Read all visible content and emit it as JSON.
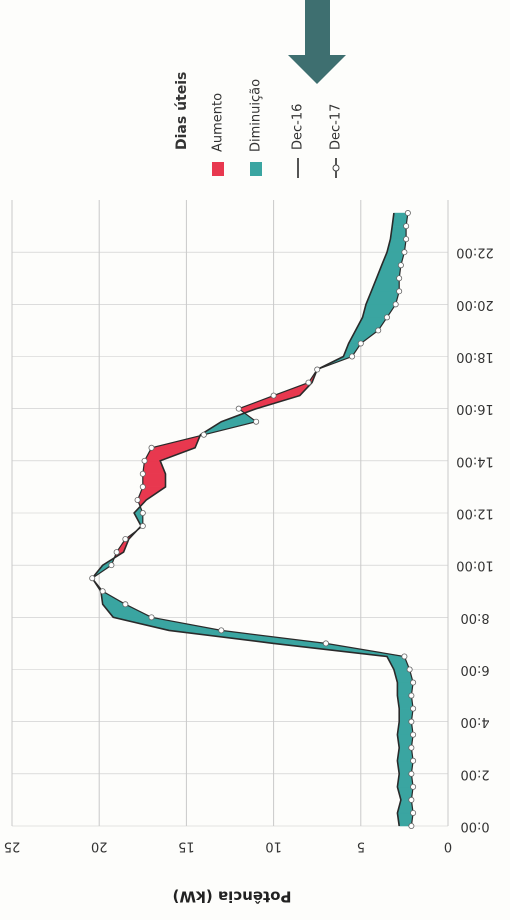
{
  "chart_data": {
    "type": "area",
    "title": "",
    "ylabel": "Potência (kW)",
    "xlabel": "",
    "ylim": [
      0,
      25
    ],
    "y_ticks": [
      0,
      5,
      10,
      15,
      20,
      25
    ],
    "x_ticks": [
      "0:00",
      "2:00",
      "4:00",
      "6:00",
      "8:00",
      "10:00",
      "12:00",
      "14:00",
      "16:00",
      "18:00",
      "20:00",
      "22:00"
    ],
    "legend": {
      "title": "Dias úteis",
      "items": [
        {
          "label": "Aumento",
          "kind": "fill",
          "color": "#e8384f"
        },
        {
          "label": "Diminuição",
          "kind": "fill",
          "color": "#3aa5a1"
        },
        {
          "label": "Dec-16",
          "kind": "line",
          "color": "#2a2a2a"
        },
        {
          "label": "Dec-17",
          "kind": "line-marker",
          "color": "#2a2a2a"
        }
      ]
    },
    "colors": {
      "increase": "#e8384f",
      "decrease": "#3aa5a1",
      "line": "#2a2a2a",
      "grid": "#c9c9c9",
      "arrow": "#3e6f70"
    },
    "x_hours": [
      0,
      0.5,
      1,
      1.5,
      2,
      2.5,
      3,
      3.5,
      4,
      4.5,
      5,
      5.5,
      6,
      6.5,
      7,
      7.5,
      8,
      8.5,
      9,
      9.5,
      10,
      10.5,
      11,
      11.5,
      12,
      12.5,
      13,
      13.5,
      14,
      14.5,
      15,
      15.5,
      16,
      16.5,
      17,
      17.5,
      18,
      18.5,
      19,
      19.5,
      20,
      20.5,
      21,
      21.5,
      22,
      22.5,
      23,
      23.5
    ],
    "series": [
      {
        "name": "Dec-16",
        "values": [
          2.8,
          2.9,
          2.7,
          2.9,
          2.8,
          2.9,
          2.8,
          2.9,
          2.8,
          2.8,
          2.9,
          2.9,
          3.1,
          3.5,
          10.0,
          16.0,
          19.2,
          19.8,
          19.9,
          20.4,
          19.8,
          18.6,
          18.3,
          17.6,
          18.0,
          17.3,
          16.2,
          16.2,
          16.5,
          14.5,
          14.2,
          13.0,
          11.0,
          8.5,
          7.8,
          7.5,
          6.0,
          5.7,
          5.3,
          4.9,
          4.7,
          4.4,
          4.1,
          3.8,
          3.5,
          3.3,
          3.2,
          3.1
        ]
      },
      {
        "name": "Dec-17",
        "values": [
          2.1,
          2.0,
          2.1,
          2.0,
          2.1,
          2.0,
          2.1,
          2.0,
          2.1,
          2.0,
          2.1,
          2.0,
          2.2,
          2.5,
          7.0,
          13.0,
          17.0,
          18.5,
          19.8,
          20.4,
          19.3,
          19.0,
          18.5,
          17.5,
          17.5,
          17.8,
          17.5,
          17.5,
          17.4,
          17.0,
          14.0,
          11.0,
          12.0,
          10.0,
          8.0,
          7.5,
          5.5,
          5.0,
          4.0,
          3.5,
          3.0,
          2.8,
          2.8,
          2.7,
          2.5,
          2.4,
          2.4,
          2.3
        ]
      }
    ]
  }
}
